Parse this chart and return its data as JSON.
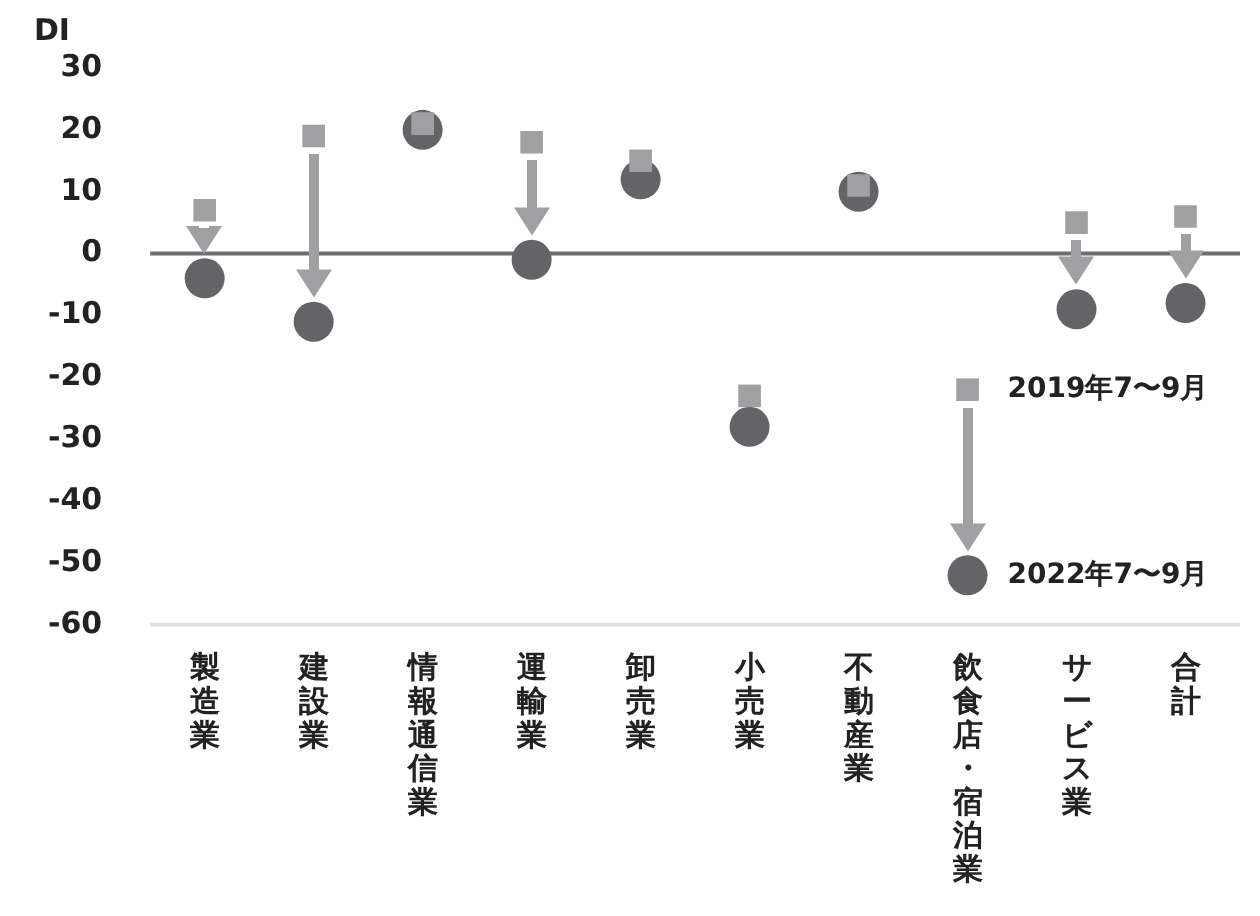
{
  "chart_data": {
    "type": "scatter",
    "ylabel": "DI",
    "categories": [
      "製造業",
      "建設業",
      "情報通信業",
      "運輸業",
      "卸売業",
      "小売業",
      "不動産業",
      "飲食店・宿泊業",
      "サービス業",
      "合計"
    ],
    "series": [
      {
        "name": "2019年7〜9月",
        "color": "#a0a0a3",
        "marker": "square",
        "values": [
          7,
          19,
          21,
          18,
          15,
          -23,
          11,
          -22,
          5,
          6
        ]
      },
      {
        "name": "2022年7〜9月",
        "color": "#636368",
        "marker": "circle",
        "values": [
          -4,
          -11,
          20,
          -1,
          12,
          -28,
          10,
          -52,
          -9,
          -8
        ]
      }
    ],
    "ylim": [
      -60,
      30
    ],
    "yticks": [
      -60,
      -50,
      -40,
      -30,
      -20,
      -10,
      0,
      10,
      20,
      30
    ],
    "ref_lines": [
      {
        "axis": "y",
        "value": 0,
        "color": "#6e6e72"
      }
    ],
    "grid": false,
    "legend": false
  }
}
